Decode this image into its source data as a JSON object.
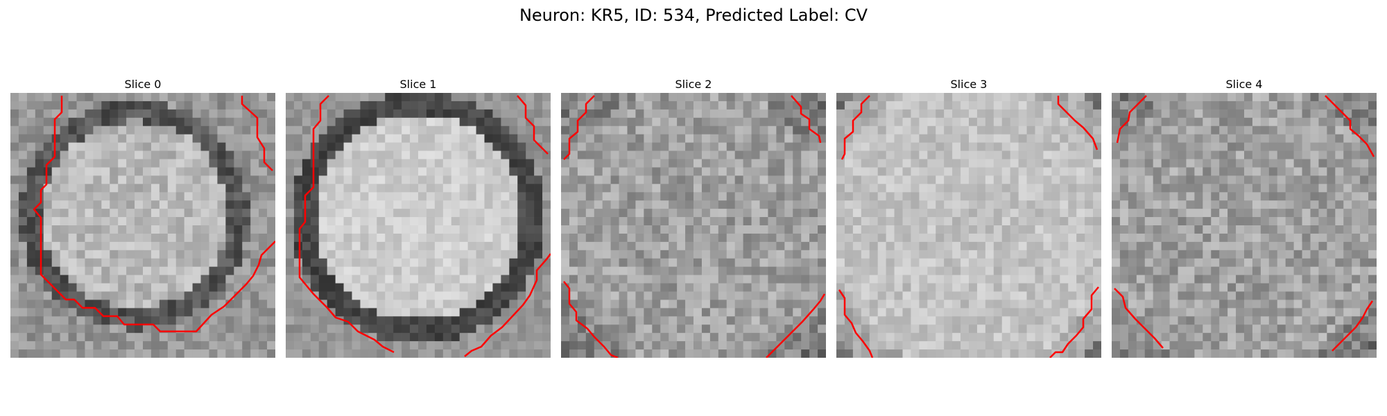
{
  "figure": {
    "title": "Neuron: KR5, ID: 534, Predicted Label: CV"
  },
  "style": {
    "contour_color": "#ff0000",
    "colormap": "grayscale"
  },
  "slices": [
    {
      "title": "Slice 0"
    },
    {
      "title": "Slice 1"
    },
    {
      "title": "Slice 2"
    },
    {
      "title": "Slice 3"
    },
    {
      "title": "Slice 4"
    }
  ]
}
